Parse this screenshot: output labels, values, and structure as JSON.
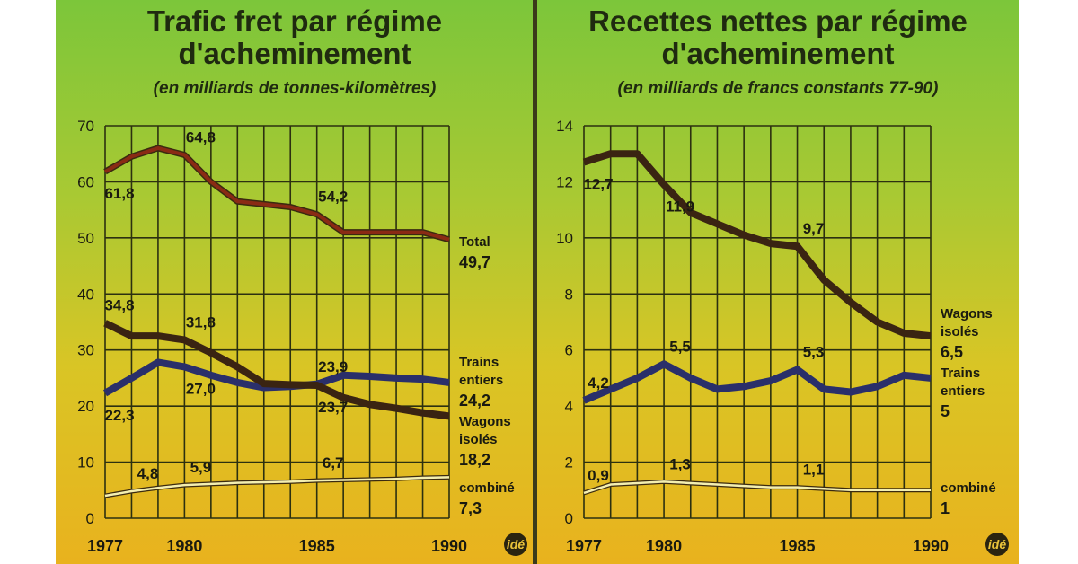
{
  "chart_data": [
    {
      "type": "line",
      "title": "Trafic fret par régime d'acheminement",
      "subtitle": "(en milliards de tonnes-kilomètres)",
      "x": [
        1977,
        1978,
        1979,
        1980,
        1981,
        1982,
        1983,
        1984,
        1985,
        1986,
        1987,
        1988,
        1989,
        1990
      ],
      "xticks": [
        "1977",
        "1980",
        "1985",
        "1990"
      ],
      "yticks": [
        0,
        10,
        20,
        30,
        40,
        50,
        60,
        70
      ],
      "ylim": [
        0,
        70
      ],
      "grid": true,
      "series": [
        {
          "name": "Total",
          "end_label": [
            "Total",
            "49,7"
          ],
          "color": "#8a2a14",
          "values": [
            61.8,
            64.5,
            66,
            64.8,
            60,
            56.5,
            56,
            55.5,
            54.2,
            51,
            51,
            51,
            51,
            49.7
          ],
          "labels": [
            {
              "year": 1977,
              "text": "61,8"
            },
            {
              "year": 1980,
              "text": "64,8"
            },
            {
              "year": 1985,
              "text": "54,2"
            }
          ]
        },
        {
          "name": "Trains entiers",
          "end_label": [
            "Trains",
            "entiers",
            "24,2"
          ],
          "color": "#2a2f6a",
          "values": [
            22.3,
            25,
            27.8,
            27,
            25.5,
            24.2,
            23.3,
            23.5,
            23.9,
            25.5,
            25.3,
            25,
            24.8,
            24.2
          ],
          "labels": [
            {
              "year": 1977,
              "text": "22,3"
            },
            {
              "year": 1980,
              "text": "27,0"
            },
            {
              "year": 1985,
              "text": "23,9"
            }
          ]
        },
        {
          "name": "Wagons isolés",
          "end_label": [
            "Wagons",
            "isolés",
            "18,2"
          ],
          "color": "#3a2412",
          "values": [
            34.8,
            32.5,
            32.5,
            31.8,
            29.5,
            27,
            24,
            23.8,
            23.7,
            21.5,
            20.3,
            19.6,
            18.8,
            18.2
          ],
          "labels": [
            {
              "year": 1977,
              "text": "34,8"
            },
            {
              "year": 1980,
              "text": "31,8"
            },
            {
              "year": 1985,
              "text": "23,7"
            }
          ]
        },
        {
          "name": "combiné",
          "end_label": [
            "combiné",
            "7,3"
          ],
          "color": "#f4efb0",
          "values": [
            4.0,
            4.8,
            5.4,
            5.9,
            6.1,
            6.3,
            6.4,
            6.5,
            6.7,
            6.8,
            6.9,
            7.0,
            7.2,
            7.3
          ],
          "labels": [
            {
              "year": 1978,
              "text": "4,8"
            },
            {
              "year": 1980,
              "text": "5,9"
            },
            {
              "year": 1985,
              "text": "6,7"
            }
          ]
        }
      ]
    },
    {
      "type": "line",
      "title": "Recettes nettes par régime d'acheminement",
      "subtitle": "(en milliards de francs constants 77-90)",
      "x": [
        1977,
        1978,
        1979,
        1980,
        1981,
        1982,
        1983,
        1984,
        1985,
        1986,
        1987,
        1988,
        1989,
        1990
      ],
      "xticks": [
        "1977",
        "1980",
        "1985",
        "1990"
      ],
      "yticks": [
        0,
        2,
        4,
        6,
        8,
        10,
        12,
        14
      ],
      "ylim": [
        0,
        14
      ],
      "grid": true,
      "series": [
        {
          "name": "Wagons isolés",
          "end_label": [
            "Wagons",
            "isolés",
            "6,5"
          ],
          "color": "#3a2412",
          "values": [
            12.7,
            13.0,
            13.0,
            11.9,
            10.9,
            10.5,
            10.1,
            9.8,
            9.7,
            8.5,
            7.7,
            7.0,
            6.6,
            6.5
          ],
          "labels": [
            {
              "year": 1977,
              "text": "12,7"
            },
            {
              "year": 1980,
              "text": "11,9"
            },
            {
              "year": 1985,
              "text": "9,7"
            }
          ]
        },
        {
          "name": "Trains entiers",
          "end_label": [
            "Trains",
            "entiers",
            "5"
          ],
          "color": "#2a2f6a",
          "values": [
            4.2,
            4.6,
            5.0,
            5.5,
            5.0,
            4.6,
            4.7,
            4.9,
            5.3,
            4.6,
            4.5,
            4.7,
            5.1,
            5
          ],
          "labels": [
            {
              "year": 1977,
              "text": "4,2"
            },
            {
              "year": 1980,
              "text": "5,5"
            },
            {
              "year": 1985,
              "text": "5,3"
            }
          ]
        },
        {
          "name": "combiné",
          "end_label": [
            "combiné",
            "1"
          ],
          "color": "#f4efb0",
          "values": [
            0.9,
            1.2,
            1.25,
            1.3,
            1.25,
            1.2,
            1.15,
            1.1,
            1.1,
            1.05,
            1.0,
            1.0,
            1.0,
            1
          ],
          "labels": [
            {
              "year": 1977,
              "text": "0,9"
            },
            {
              "year": 1980,
              "text": "1,3"
            },
            {
              "year": 1985,
              "text": "1,1"
            }
          ]
        }
      ]
    }
  ],
  "logo": "idé"
}
